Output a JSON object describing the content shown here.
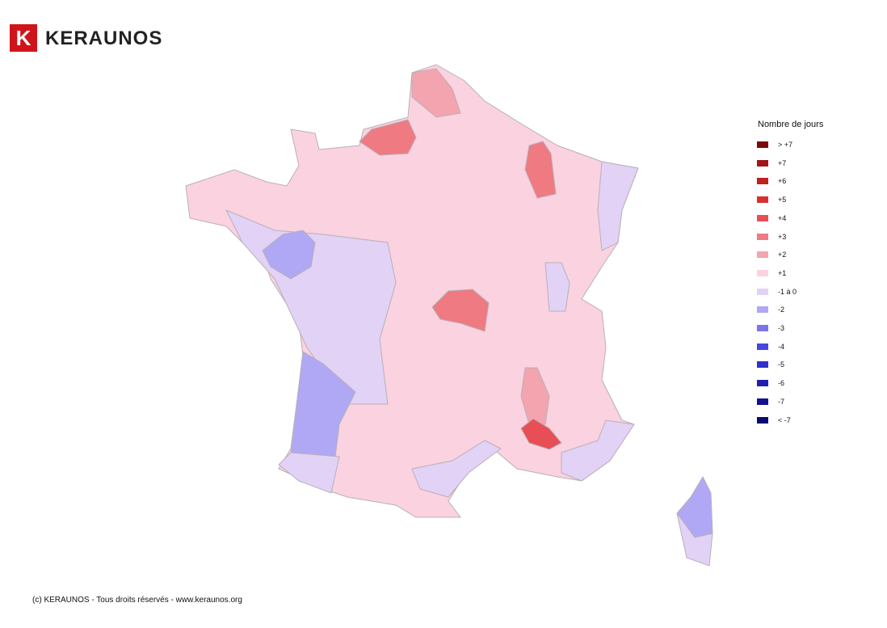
{
  "header": {
    "logo_letter": "K",
    "logo_text": "KERAUNOS"
  },
  "legend": {
    "title": "Nombre de jours",
    "items": [
      {
        "label": "> +7",
        "color": "#7a0a0a"
      },
      {
        "label": "+7",
        "color": "#a01515"
      },
      {
        "label": "+6",
        "color": "#c02020"
      },
      {
        "label": "+5",
        "color": "#d83030"
      },
      {
        "label": "+4",
        "color": "#e84e55"
      },
      {
        "label": "+3",
        "color": "#ef7a82"
      },
      {
        "label": "+2",
        "color": "#f4a4ae"
      },
      {
        "label": "+1",
        "color": "#fbd2e0"
      },
      {
        "label": "-1 à 0",
        "color": "#e2d2f5"
      },
      {
        "label": "-2",
        "color": "#b0a8f4"
      },
      {
        "label": "-3",
        "color": "#7c74ea"
      },
      {
        "label": "-4",
        "color": "#4646e0"
      },
      {
        "label": "-5",
        "color": "#3030cc"
      },
      {
        "label": "-6",
        "color": "#2020b0"
      },
      {
        "label": "-7",
        "color": "#121290"
      },
      {
        "label": "< -7",
        "color": "#0a0a70"
      }
    ]
  },
  "footer": "(c) KERAUNOS - Tous droits réservés - www.keraunos.org"
}
